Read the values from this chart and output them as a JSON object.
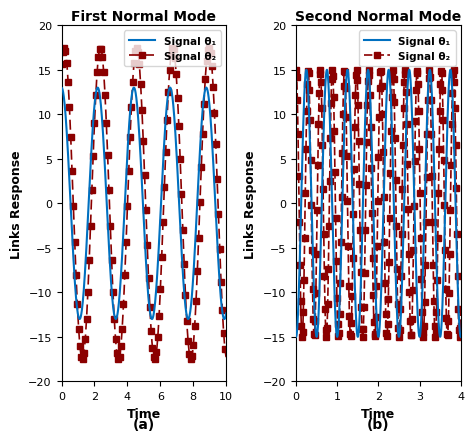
{
  "title_a": "First Normal Mode",
  "title_b": "Second Normal Mode",
  "xlabel": "Time",
  "ylabel": "Links Response",
  "label_a": "(a)",
  "label_b": "(b)",
  "legend_label_1": "Signal θ₁",
  "legend_label_2": "Signal θ₂",
  "ylim": [
    -20,
    20
  ],
  "xlim_a": [
    0,
    10
  ],
  "xlim_b": [
    0,
    4
  ],
  "amp1_a": 13.0,
  "amp2_a": 17.5,
  "freq1_a": 0.455,
  "freq2_a": 0.455,
  "phase1_a": 1.57,
  "phase2_a": 1.1,
  "amp1_b": 15.0,
  "amp2_b": 15.0,
  "freq1_b": 2.0,
  "freq2_b": 3.4,
  "phase1_b": -1.57,
  "phase2_b": 1.57,
  "color1": "#0070C0",
  "color2": "#8B0000",
  "linewidth1": 1.5,
  "linewidth2": 1.2,
  "bg_color": "#ffffff",
  "yticks": [
    -20,
    -15,
    -10,
    -5,
    0,
    5,
    10,
    15,
    20
  ],
  "xticks_a": [
    0,
    2,
    4,
    6,
    8,
    10
  ],
  "xticks_b": [
    0,
    1,
    2,
    3,
    4
  ],
  "marker_size_a": 4.5,
  "marker_every_a": 8,
  "marker_size_b": 4.5,
  "marker_every_b": 4
}
